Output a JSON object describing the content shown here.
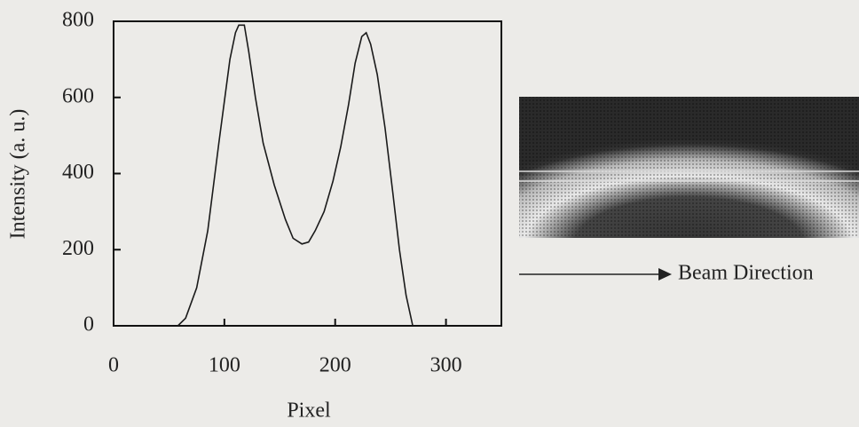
{
  "chart_data": {
    "type": "line",
    "xlabel": "Pixel",
    "ylabel": "Intensity (a. u.)",
    "x": [
      58,
      65,
      75,
      85,
      95,
      105,
      110,
      113,
      118,
      122,
      128,
      135,
      145,
      155,
      162,
      170,
      176,
      182,
      190,
      198,
      205,
      212,
      218,
      224,
      228,
      232,
      238,
      245,
      252,
      258,
      264,
      270
    ],
    "values": [
      0,
      20,
      100,
      250,
      480,
      700,
      770,
      790,
      790,
      720,
      600,
      480,
      370,
      280,
      230,
      215,
      220,
      250,
      300,
      380,
      470,
      580,
      690,
      760,
      770,
      740,
      660,
      520,
      350,
      200,
      80,
      0
    ],
    "color": "#1a1a1a",
    "xlim": [
      0,
      350
    ],
    "xticks": [
      0,
      100,
      200,
      300
    ],
    "ylim": [
      0,
      800
    ],
    "yticks": [
      0,
      200,
      400,
      600,
      800
    ],
    "annotation": "Beam Direction"
  }
}
